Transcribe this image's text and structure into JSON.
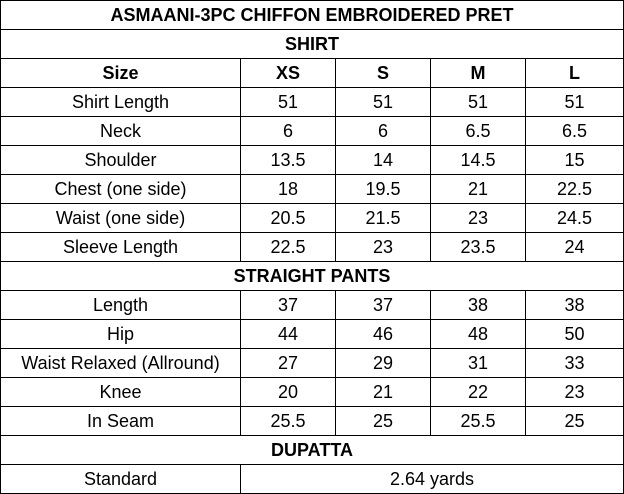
{
  "title": "ASMAANI-3PC CHIFFON EMBROIDERED PRET",
  "shirt": {
    "heading": "SHIRT",
    "columns": [
      "Size",
      "XS",
      "S",
      "M",
      "L"
    ],
    "rows": [
      [
        "Shirt Length",
        "51",
        "51",
        "51",
        "51"
      ],
      [
        "Neck",
        "6",
        "6",
        "6.5",
        "6.5"
      ],
      [
        "Shoulder",
        "13.5",
        "14",
        "14.5",
        "15"
      ],
      [
        "Chest (one side)",
        "18",
        "19.5",
        "21",
        "22.5"
      ],
      [
        "Waist (one side)",
        "20.5",
        "21.5",
        "23",
        "24.5"
      ],
      [
        "Sleeve Length",
        "22.5",
        "23",
        "23.5",
        "24"
      ]
    ]
  },
  "pants": {
    "heading": "STRAIGHT PANTS",
    "rows": [
      [
        "Length",
        "37",
        "37",
        "38",
        "38"
      ],
      [
        "Hip",
        "44",
        "46",
        "48",
        "50"
      ],
      [
        "Waist Relaxed (Allround)",
        "27",
        "29",
        "31",
        "33"
      ],
      [
        "Knee",
        "20",
        "21",
        "22",
        "23"
      ],
      [
        "In Seam",
        "25.5",
        "25",
        "25.5",
        "25"
      ]
    ]
  },
  "dupatta": {
    "heading": "DUPATTA",
    "rows": [
      [
        "Standard",
        "2.64 yards"
      ]
    ]
  }
}
